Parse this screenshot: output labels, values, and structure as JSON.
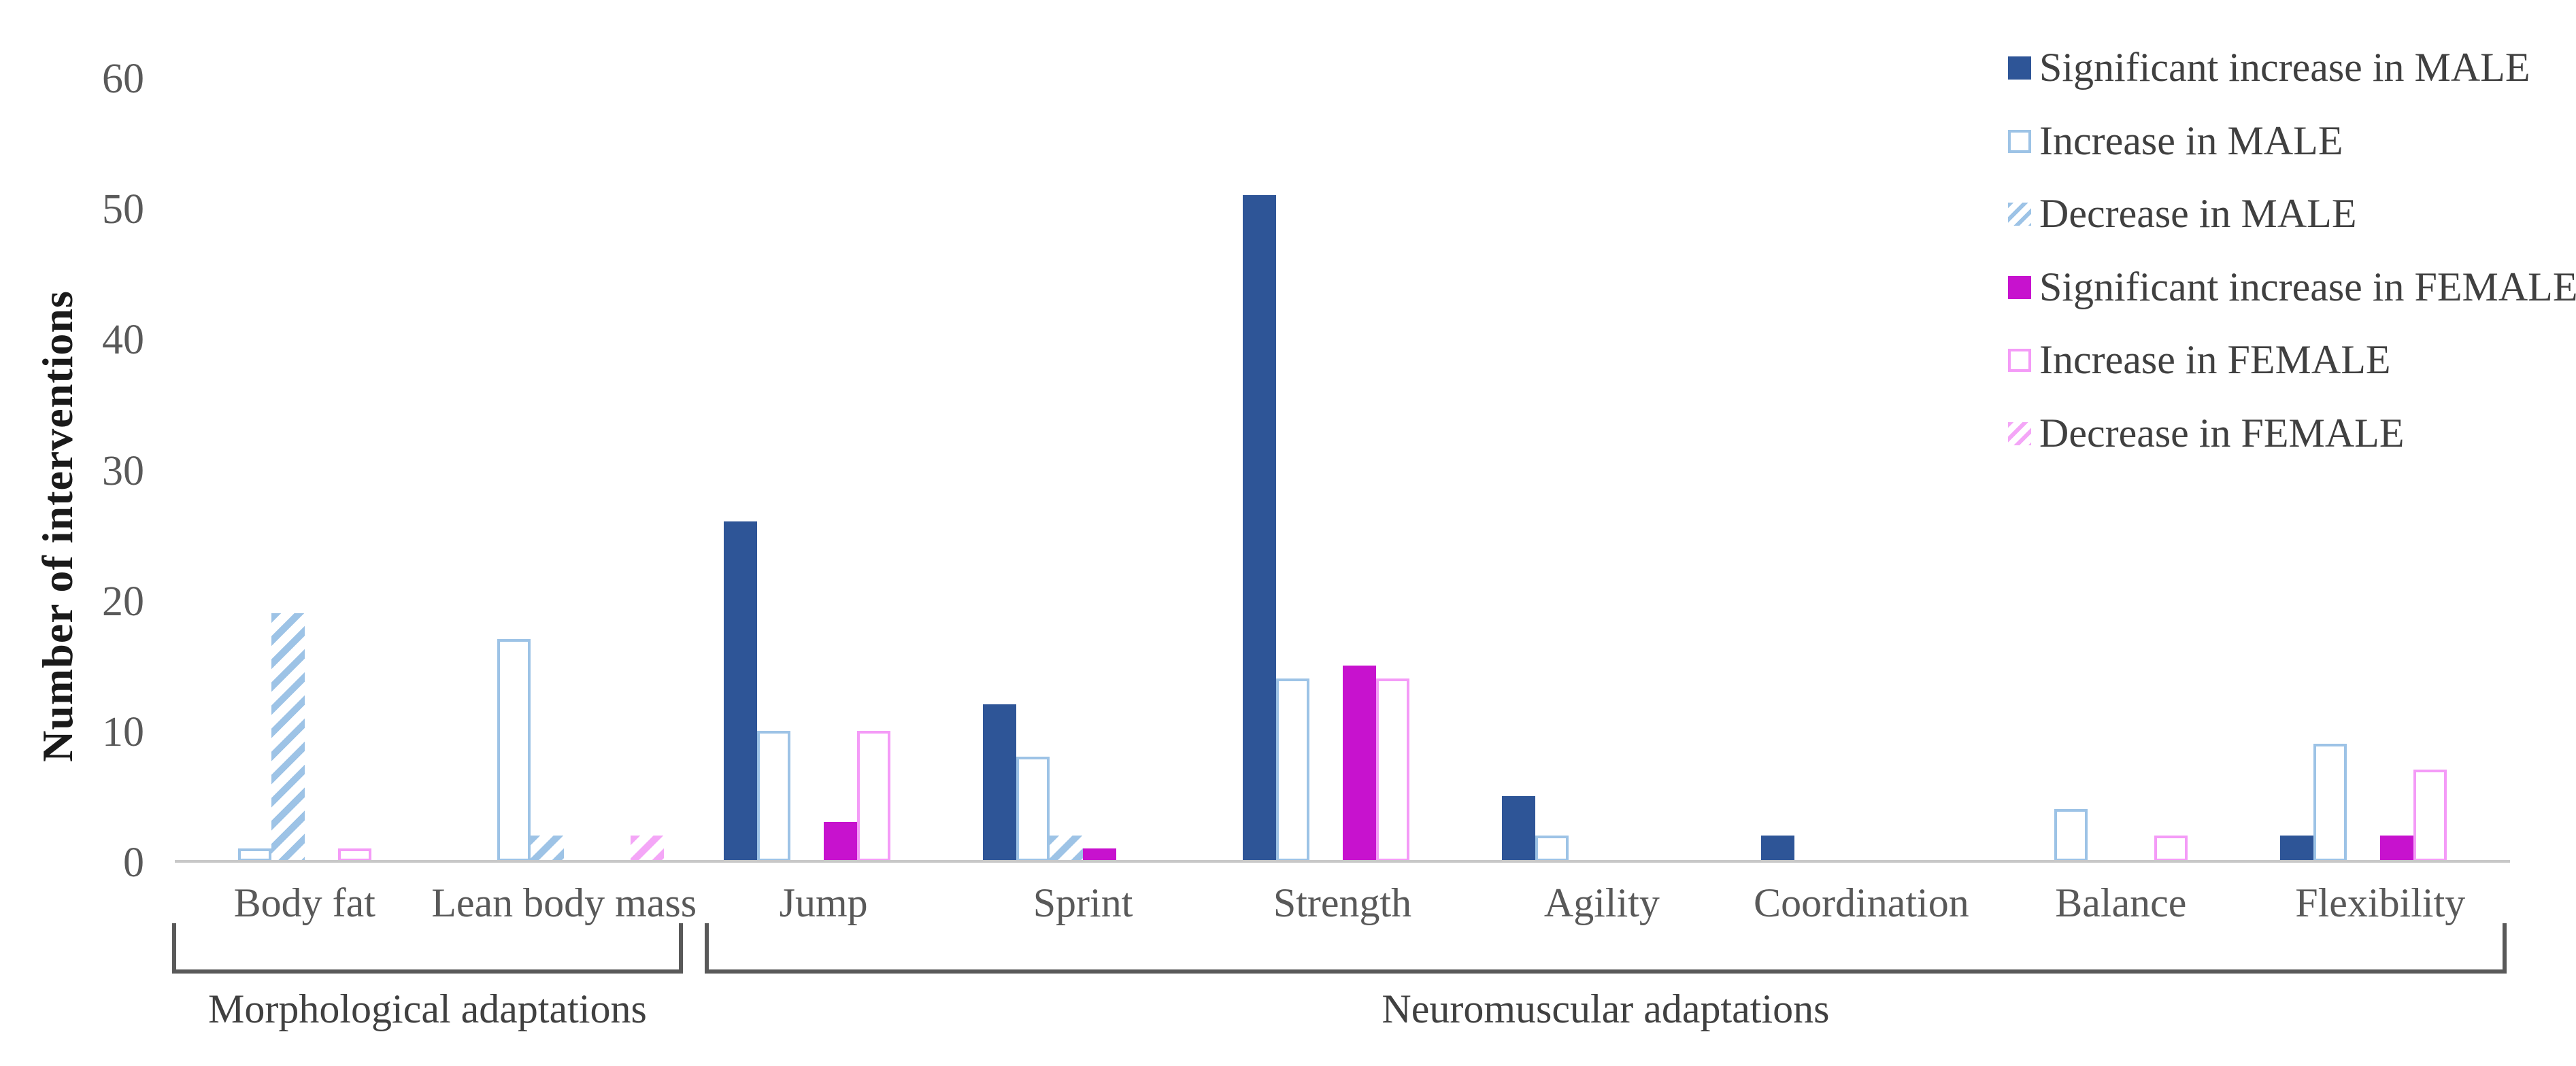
{
  "chart_data": {
    "type": "bar",
    "title": "",
    "ylabel": "Number of interventions",
    "xlabel": "",
    "ylim": [
      0,
      60
    ],
    "yticks": [
      0,
      10,
      20,
      30,
      40,
      50,
      60
    ],
    "grid": false,
    "legend_position": "top-right",
    "categories": [
      "Body fat",
      "Lean body mass",
      "Jump",
      "Sprint",
      "Strength",
      "Agility",
      "Coordination",
      "Balance",
      "Flexibility"
    ],
    "series": [
      {
        "name": "Significant increase in MALE",
        "style": "solid",
        "color": "#2E5597",
        "values": [
          0,
          0,
          26,
          12,
          51,
          5,
          2,
          0,
          2
        ]
      },
      {
        "name": "Increase in MALE",
        "style": "outline",
        "color": "#9DC3E6",
        "values": [
          1,
          17,
          10,
          8,
          14,
          2,
          0,
          4,
          9
        ]
      },
      {
        "name": "Decrease in MALE",
        "style": "hatch",
        "color": "#9DC3E6",
        "values": [
          19,
          2,
          0,
          2,
          0,
          0,
          0,
          0,
          0
        ]
      },
      {
        "name": "Significant increase in FEMALE",
        "style": "solid",
        "color": "#C712CE",
        "values": [
          0,
          0,
          3,
          1,
          15,
          0,
          0,
          0,
          2
        ]
      },
      {
        "name": "Increase in FEMALE",
        "style": "outline",
        "color": "#F49BF7",
        "values": [
          1,
          0,
          10,
          0,
          14,
          0,
          0,
          2,
          7
        ]
      },
      {
        "name": "Decrease in FEMALE",
        "style": "hatch",
        "color": "#F4A6F7",
        "values": [
          0,
          2,
          0,
          0,
          0,
          0,
          0,
          0,
          0
        ]
      }
    ],
    "groups": [
      {
        "label": "Morphological adaptations",
        "from": 0,
        "to": 1
      },
      {
        "label": "Neuromuscular adaptations",
        "from": 2,
        "to": 8
      }
    ]
  },
  "colors": {
    "axis_line": "#c8c8c8",
    "bracket": "#595959",
    "tick_text": "#595959",
    "category_text": "#595959",
    "legend_text": "#404040"
  }
}
